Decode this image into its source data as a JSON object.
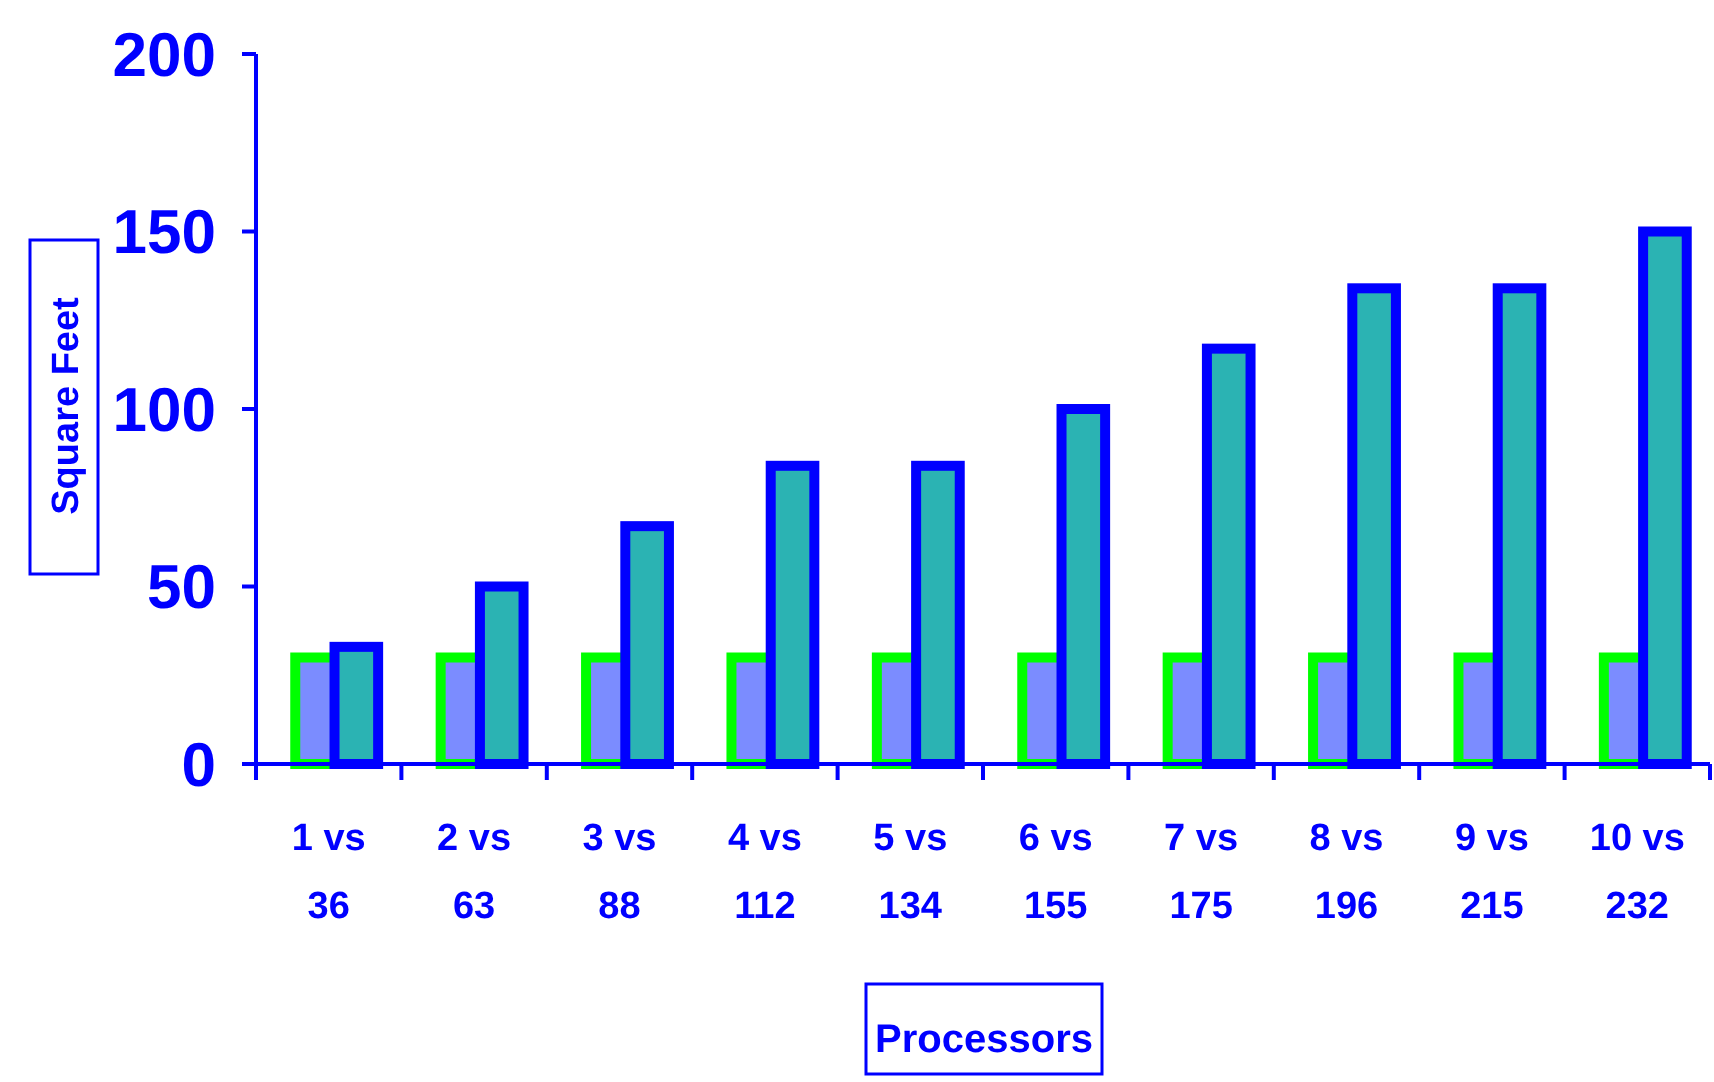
{
  "chart_data": {
    "type": "bar",
    "xlabel": "Processors",
    "ylabel": "Square Feet",
    "categories": [
      "1 vs 36",
      "2 vs 63",
      "3 vs 88",
      "4 vs 112",
      "5 vs 134",
      "6 vs 155",
      "7 vs 175",
      "8 vs 196",
      "9 vs 215",
      "10 vs 232"
    ],
    "series": [
      {
        "color": "#7b8cff",
        "values": [
          30,
          30,
          30,
          30,
          30,
          30,
          30,
          30,
          30,
          30
        ]
      },
      {
        "color": "#2bb3b3",
        "values": [
          33,
          50,
          67,
          84,
          84,
          100,
          117,
          134,
          134,
          150
        ]
      }
    ],
    "ylim": [
      0,
      200
    ],
    "yticks": [
      0,
      50,
      100,
      150,
      200
    ],
    "grid": false
  }
}
